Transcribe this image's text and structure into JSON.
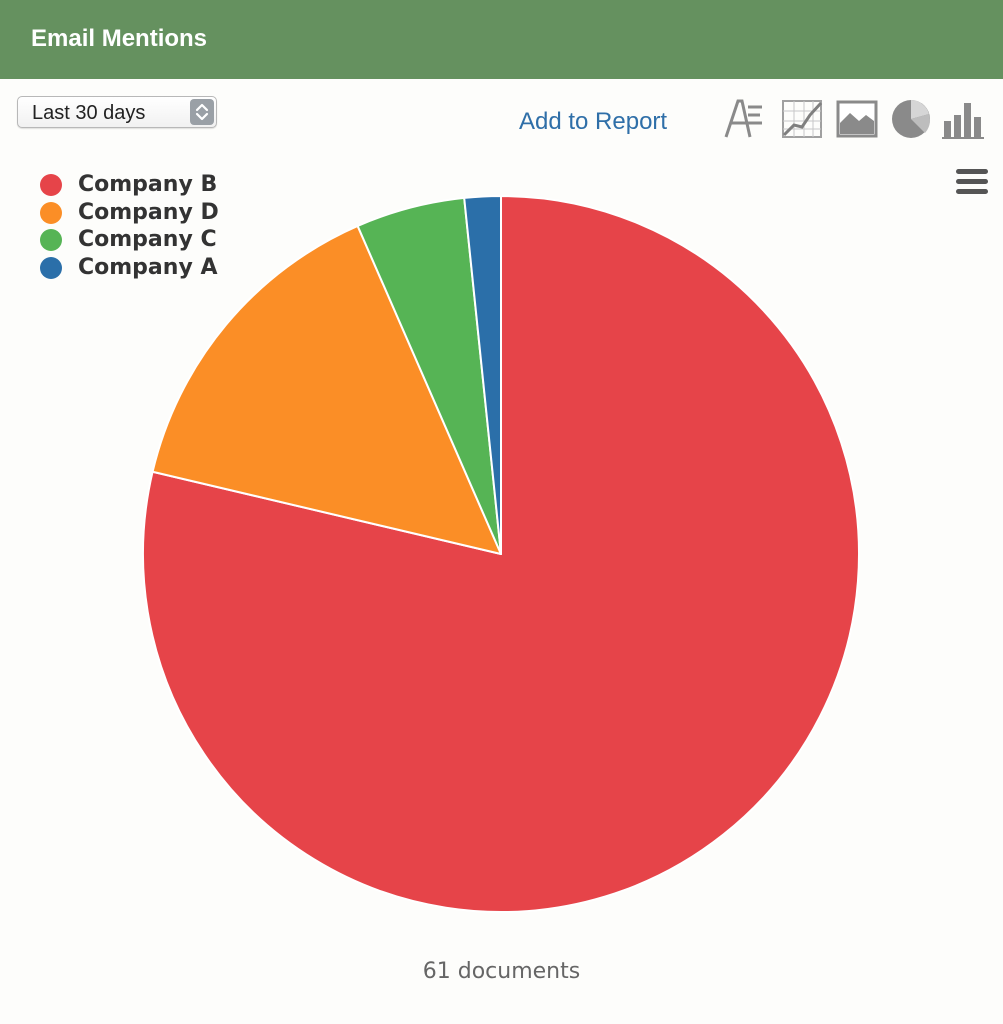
{
  "header": {
    "title": "Email Mentions"
  },
  "toolbar": {
    "range_value": "Last 30 days",
    "add_to_report": "Add to Report",
    "view_icons": [
      "text-view-icon",
      "line-chart-icon",
      "area-chart-icon",
      "pie-chart-icon",
      "bar-chart-icon"
    ]
  },
  "footer": {
    "count": "61 documents"
  },
  "chart_data": {
    "type": "pie",
    "title": "",
    "start_angle_deg": 0,
    "direction": "clockwise",
    "slices": [
      {
        "name": "Company B",
        "value": 48,
        "color": "#e64449"
      },
      {
        "name": "Company D",
        "value": 9,
        "color": "#fb8e26"
      },
      {
        "name": "Company C",
        "value": 3,
        "color": "#56b455"
      },
      {
        "name": "Company A",
        "value": 1,
        "color": "#2b6fa9"
      }
    ],
    "legend": {
      "position": "top-left",
      "entries": [
        "Company B",
        "Company D",
        "Company C",
        "Company A"
      ]
    }
  }
}
